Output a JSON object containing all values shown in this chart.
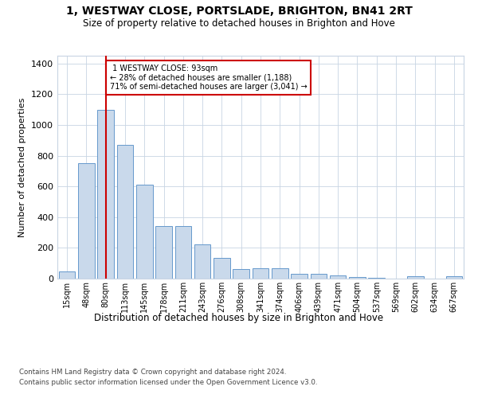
{
  "title": "1, WESTWAY CLOSE, PORTSLADE, BRIGHTON, BN41 2RT",
  "subtitle": "Size of property relative to detached houses in Brighton and Hove",
  "xlabel": "Distribution of detached houses by size in Brighton and Hove",
  "ylabel": "Number of detached properties",
  "footnote1": "Contains HM Land Registry data © Crown copyright and database right 2024.",
  "footnote2": "Contains public sector information licensed under the Open Government Licence v3.0.",
  "categories": [
    "15sqm",
    "48sqm",
    "80sqm",
    "113sqm",
    "145sqm",
    "178sqm",
    "211sqm",
    "243sqm",
    "276sqm",
    "308sqm",
    "341sqm",
    "374sqm",
    "406sqm",
    "439sqm",
    "471sqm",
    "504sqm",
    "537sqm",
    "569sqm",
    "602sqm",
    "634sqm",
    "667sqm"
  ],
  "values": [
    45,
    750,
    1100,
    870,
    610,
    340,
    340,
    225,
    135,
    60,
    65,
    65,
    30,
    30,
    20,
    10,
    5,
    0,
    15,
    0,
    15
  ],
  "bar_color": "#c9d9eb",
  "bar_edge_color": "#6699cc",
  "property_bin_index": 2,
  "property_label": "1 WESTWAY CLOSE: 93sqm",
  "pct_smaller": "28% of detached houses are smaller (1,188)",
  "pct_larger": "71% of semi-detached houses are larger (3,041)",
  "vline_color": "#cc0000",
  "annotation_box_color": "#cc0000",
  "ylim": [
    0,
    1450
  ],
  "background_color": "#ffffff",
  "grid_color": "#c8d4e3"
}
